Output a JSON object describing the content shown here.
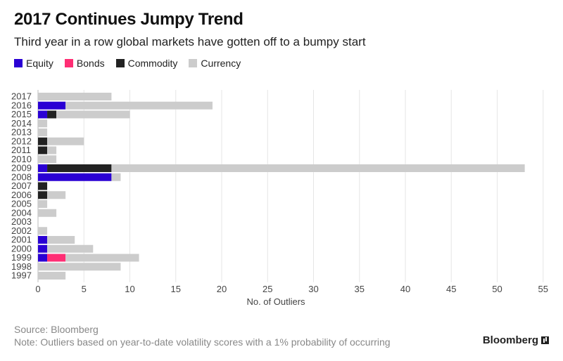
{
  "chart_data": {
    "type": "bar",
    "orientation": "horizontal",
    "stacked": true,
    "title": "2017 Continues Jumpy Trend",
    "subtitle": "Third year in a row global markets have gotten off to a bumpy start",
    "xlabel": "No. of Outliers",
    "ylabel": "",
    "xlim": [
      0,
      55
    ],
    "xticks": [
      0,
      5,
      10,
      15,
      20,
      25,
      30,
      35,
      40,
      45,
      50,
      55
    ],
    "grid": true,
    "legend_position": "top-left",
    "categories": [
      "2017",
      "2016",
      "2015",
      "2014",
      "2013",
      "2012",
      "2011",
      "2010",
      "2009",
      "2008",
      "2007",
      "2006",
      "2005",
      "2004",
      "2003",
      "2002",
      "2001",
      "2000",
      "1999",
      "1998",
      "1997"
    ],
    "series": [
      {
        "name": "Equity",
        "color": "#2a00d4",
        "values": [
          0,
          3,
          1,
          0,
          0,
          0,
          0,
          0,
          1,
          8,
          0,
          0,
          0,
          0,
          0,
          0,
          1,
          1,
          1,
          0,
          0
        ]
      },
      {
        "name": "Bonds",
        "color": "#ff2e74",
        "values": [
          0,
          0,
          0,
          0,
          0,
          0,
          0,
          0,
          0,
          0,
          0,
          0,
          0,
          0,
          0,
          0,
          0,
          0,
          2,
          0,
          0
        ]
      },
      {
        "name": "Commodity",
        "color": "#222222",
        "values": [
          0,
          0,
          1,
          0,
          0,
          1,
          1,
          0,
          7,
          0,
          1,
          1,
          0,
          0,
          0,
          0,
          0,
          0,
          0,
          0,
          0
        ]
      },
      {
        "name": "Currency",
        "color": "#cccccc",
        "values": [
          8,
          16,
          8,
          1,
          1,
          4,
          1,
          2,
          45,
          1,
          0,
          2,
          1,
          2,
          0,
          1,
          3,
          5,
          8,
          9,
          3
        ]
      }
    ]
  },
  "footer": {
    "source": "Source: Bloomberg",
    "note": "Note: Outliers based on year-to-date volatility scores with a 1% probability of occurring"
  },
  "logo": {
    "text": "Bloomberg",
    "icon": "bloomberg-chart-icon"
  }
}
